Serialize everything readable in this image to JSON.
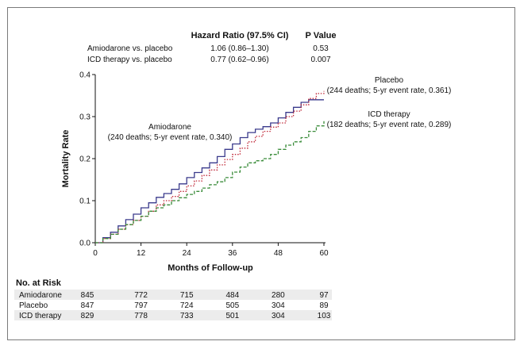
{
  "chart_data": {
    "type": "line",
    "xlabel": "Months of Follow-up",
    "ylabel": "Mortality Rate",
    "xlim": [
      0,
      60
    ],
    "ylim": [
      0,
      0.4
    ],
    "x_ticks": [
      "0",
      "12",
      "24",
      "36",
      "48",
      "60"
    ],
    "y_ticks": [
      "0.0",
      "0.1",
      "0.2",
      "0.3",
      "0.4"
    ],
    "hazard_table": {
      "col_hr": "Hazard Ratio (97.5% CI)",
      "col_p": "P Value",
      "rows": [
        {
          "label": "Amiodarone vs. placebo",
          "hr": "1.06 (0.86–1.30)",
          "p": "0.53"
        },
        {
          "label": "ICD therapy vs. placebo",
          "hr": "0.77 (0.62–0.96)",
          "p": "0.007"
        }
      ]
    },
    "series": [
      {
        "name": "Amiodarone",
        "annotation": [
          "Amiodarone",
          "(240 deaths; 5-yr event rate, 0.340)"
        ],
        "color": "#3a3a8c",
        "style": "solid",
        "points": [
          [
            0,
            0
          ],
          [
            2,
            0.012
          ],
          [
            4,
            0.025
          ],
          [
            6,
            0.04
          ],
          [
            8,
            0.055
          ],
          [
            10,
            0.068
          ],
          [
            12,
            0.083
          ],
          [
            14,
            0.095
          ],
          [
            16,
            0.108
          ],
          [
            18,
            0.117
          ],
          [
            20,
            0.127
          ],
          [
            22,
            0.14
          ],
          [
            24,
            0.155
          ],
          [
            26,
            0.167
          ],
          [
            28,
            0.178
          ],
          [
            30,
            0.19
          ],
          [
            32,
            0.205
          ],
          [
            34,
            0.222
          ],
          [
            36,
            0.235
          ],
          [
            38,
            0.25
          ],
          [
            40,
            0.262
          ],
          [
            42,
            0.27
          ],
          [
            44,
            0.276
          ],
          [
            46,
            0.285
          ],
          [
            48,
            0.297
          ],
          [
            50,
            0.31
          ],
          [
            52,
            0.322
          ],
          [
            54,
            0.334
          ],
          [
            56,
            0.34
          ],
          [
            58,
            0.34
          ],
          [
            60,
            0.34
          ]
        ]
      },
      {
        "name": "Placebo",
        "annotation": [
          "Placebo",
          "(244 deaths; 5-yr event rate, 0.361)"
        ],
        "color": "#c02838",
        "style": "dotted",
        "points": [
          [
            0,
            0
          ],
          [
            2,
            0.01
          ],
          [
            4,
            0.02
          ],
          [
            6,
            0.032
          ],
          [
            8,
            0.043
          ],
          [
            10,
            0.053
          ],
          [
            12,
            0.063
          ],
          [
            14,
            0.075
          ],
          [
            16,
            0.09
          ],
          [
            18,
            0.1
          ],
          [
            20,
            0.11
          ],
          [
            22,
            0.122
          ],
          [
            24,
            0.135
          ],
          [
            26,
            0.147
          ],
          [
            28,
            0.16
          ],
          [
            30,
            0.173
          ],
          [
            32,
            0.185
          ],
          [
            34,
            0.198
          ],
          [
            36,
            0.21
          ],
          [
            38,
            0.225
          ],
          [
            40,
            0.24
          ],
          [
            42,
            0.253
          ],
          [
            44,
            0.265
          ],
          [
            46,
            0.275
          ],
          [
            48,
            0.285
          ],
          [
            50,
            0.3
          ],
          [
            52,
            0.313
          ],
          [
            54,
            0.328
          ],
          [
            56,
            0.343
          ],
          [
            58,
            0.355
          ],
          [
            60,
            0.361
          ]
        ]
      },
      {
        "name": "ICD therapy",
        "annotation": [
          "ICD therapy",
          "(182 deaths; 5-yr event rate, 0.289)"
        ],
        "color": "#3a8c3a",
        "style": "dashed",
        "points": [
          [
            0,
            0
          ],
          [
            2,
            0.01
          ],
          [
            4,
            0.02
          ],
          [
            6,
            0.032
          ],
          [
            8,
            0.043
          ],
          [
            10,
            0.053
          ],
          [
            12,
            0.063
          ],
          [
            14,
            0.075
          ],
          [
            16,
            0.083
          ],
          [
            18,
            0.09
          ],
          [
            20,
            0.1
          ],
          [
            22,
            0.107
          ],
          [
            24,
            0.115
          ],
          [
            26,
            0.122
          ],
          [
            28,
            0.13
          ],
          [
            30,
            0.138
          ],
          [
            32,
            0.145
          ],
          [
            34,
            0.155
          ],
          [
            36,
            0.168
          ],
          [
            38,
            0.18
          ],
          [
            40,
            0.19
          ],
          [
            42,
            0.195
          ],
          [
            44,
            0.2
          ],
          [
            46,
            0.21
          ],
          [
            48,
            0.222
          ],
          [
            50,
            0.232
          ],
          [
            52,
            0.24
          ],
          [
            54,
            0.25
          ],
          [
            56,
            0.265
          ],
          [
            58,
            0.278
          ],
          [
            60,
            0.289
          ]
        ]
      }
    ],
    "at_risk": {
      "title": "No. at Risk",
      "rows": [
        {
          "label": "Amiodarone",
          "values": [
            "845",
            "772",
            "715",
            "484",
            "280",
            "97"
          ]
        },
        {
          "label": "Placebo",
          "values": [
            "847",
            "797",
            "724",
            "505",
            "304",
            "89"
          ]
        },
        {
          "label": "ICD therapy",
          "values": [
            "829",
            "778",
            "733",
            "501",
            "304",
            "103"
          ]
        }
      ]
    }
  }
}
